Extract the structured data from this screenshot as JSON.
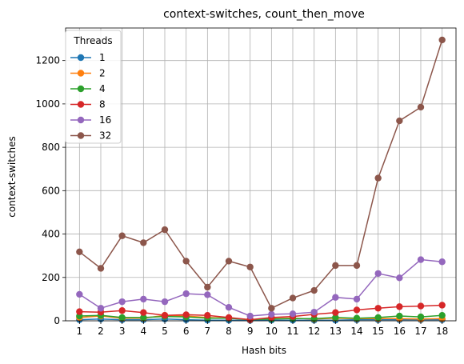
{
  "chart_data": {
    "type": "line",
    "title": "context-switches, count_then_move",
    "xlabel": "Hash bits",
    "ylabel": "context-switches",
    "x": [
      1,
      2,
      3,
      4,
      5,
      6,
      7,
      8,
      9,
      10,
      11,
      12,
      13,
      14,
      15,
      16,
      17,
      18
    ],
    "xlim": [
      0.35,
      18.65
    ],
    "ylim": [
      0,
      1350
    ],
    "yticks": [
      0,
      200,
      400,
      600,
      800,
      1000,
      1200
    ],
    "grid": true,
    "legend": {
      "title": "Threads",
      "placement": "upper-left"
    },
    "series": [
      {
        "name": "1",
        "color": "#1f77b4",
        "values": [
          5,
          8,
          5,
          5,
          8,
          5,
          3,
          3,
          2,
          3,
          3,
          3,
          3,
          5,
          5,
          5,
          5,
          5
        ]
      },
      {
        "name": "2",
        "color": "#ff7f0e",
        "values": [
          15,
          22,
          12,
          12,
          25,
          22,
          15,
          12,
          5,
          10,
          12,
          8,
          12,
          10,
          10,
          10,
          8,
          10
        ]
      },
      {
        "name": "4",
        "color": "#2ca02c",
        "values": [
          22,
          25,
          15,
          15,
          20,
          18,
          12,
          12,
          5,
          8,
          10,
          10,
          15,
          12,
          15,
          22,
          18,
          25
        ]
      },
      {
        "name": "8",
        "color": "#d62728",
        "values": [
          42,
          40,
          47,
          38,
          25,
          28,
          25,
          15,
          5,
          15,
          20,
          30,
          38,
          50,
          58,
          65,
          68,
          72
        ]
      },
      {
        "name": "16",
        "color": "#9467bd",
        "values": [
          122,
          58,
          88,
          100,
          88,
          125,
          120,
          62,
          22,
          30,
          32,
          40,
          108,
          100,
          218,
          198,
          282,
          272
        ]
      },
      {
        "name": "32",
        "color": "#8c564b",
        "values": [
          318,
          242,
          392,
          360,
          420,
          275,
          155,
          275,
          248,
          58,
          105,
          140,
          255,
          255,
          658,
          922,
          985,
          1295
        ]
      }
    ]
  }
}
